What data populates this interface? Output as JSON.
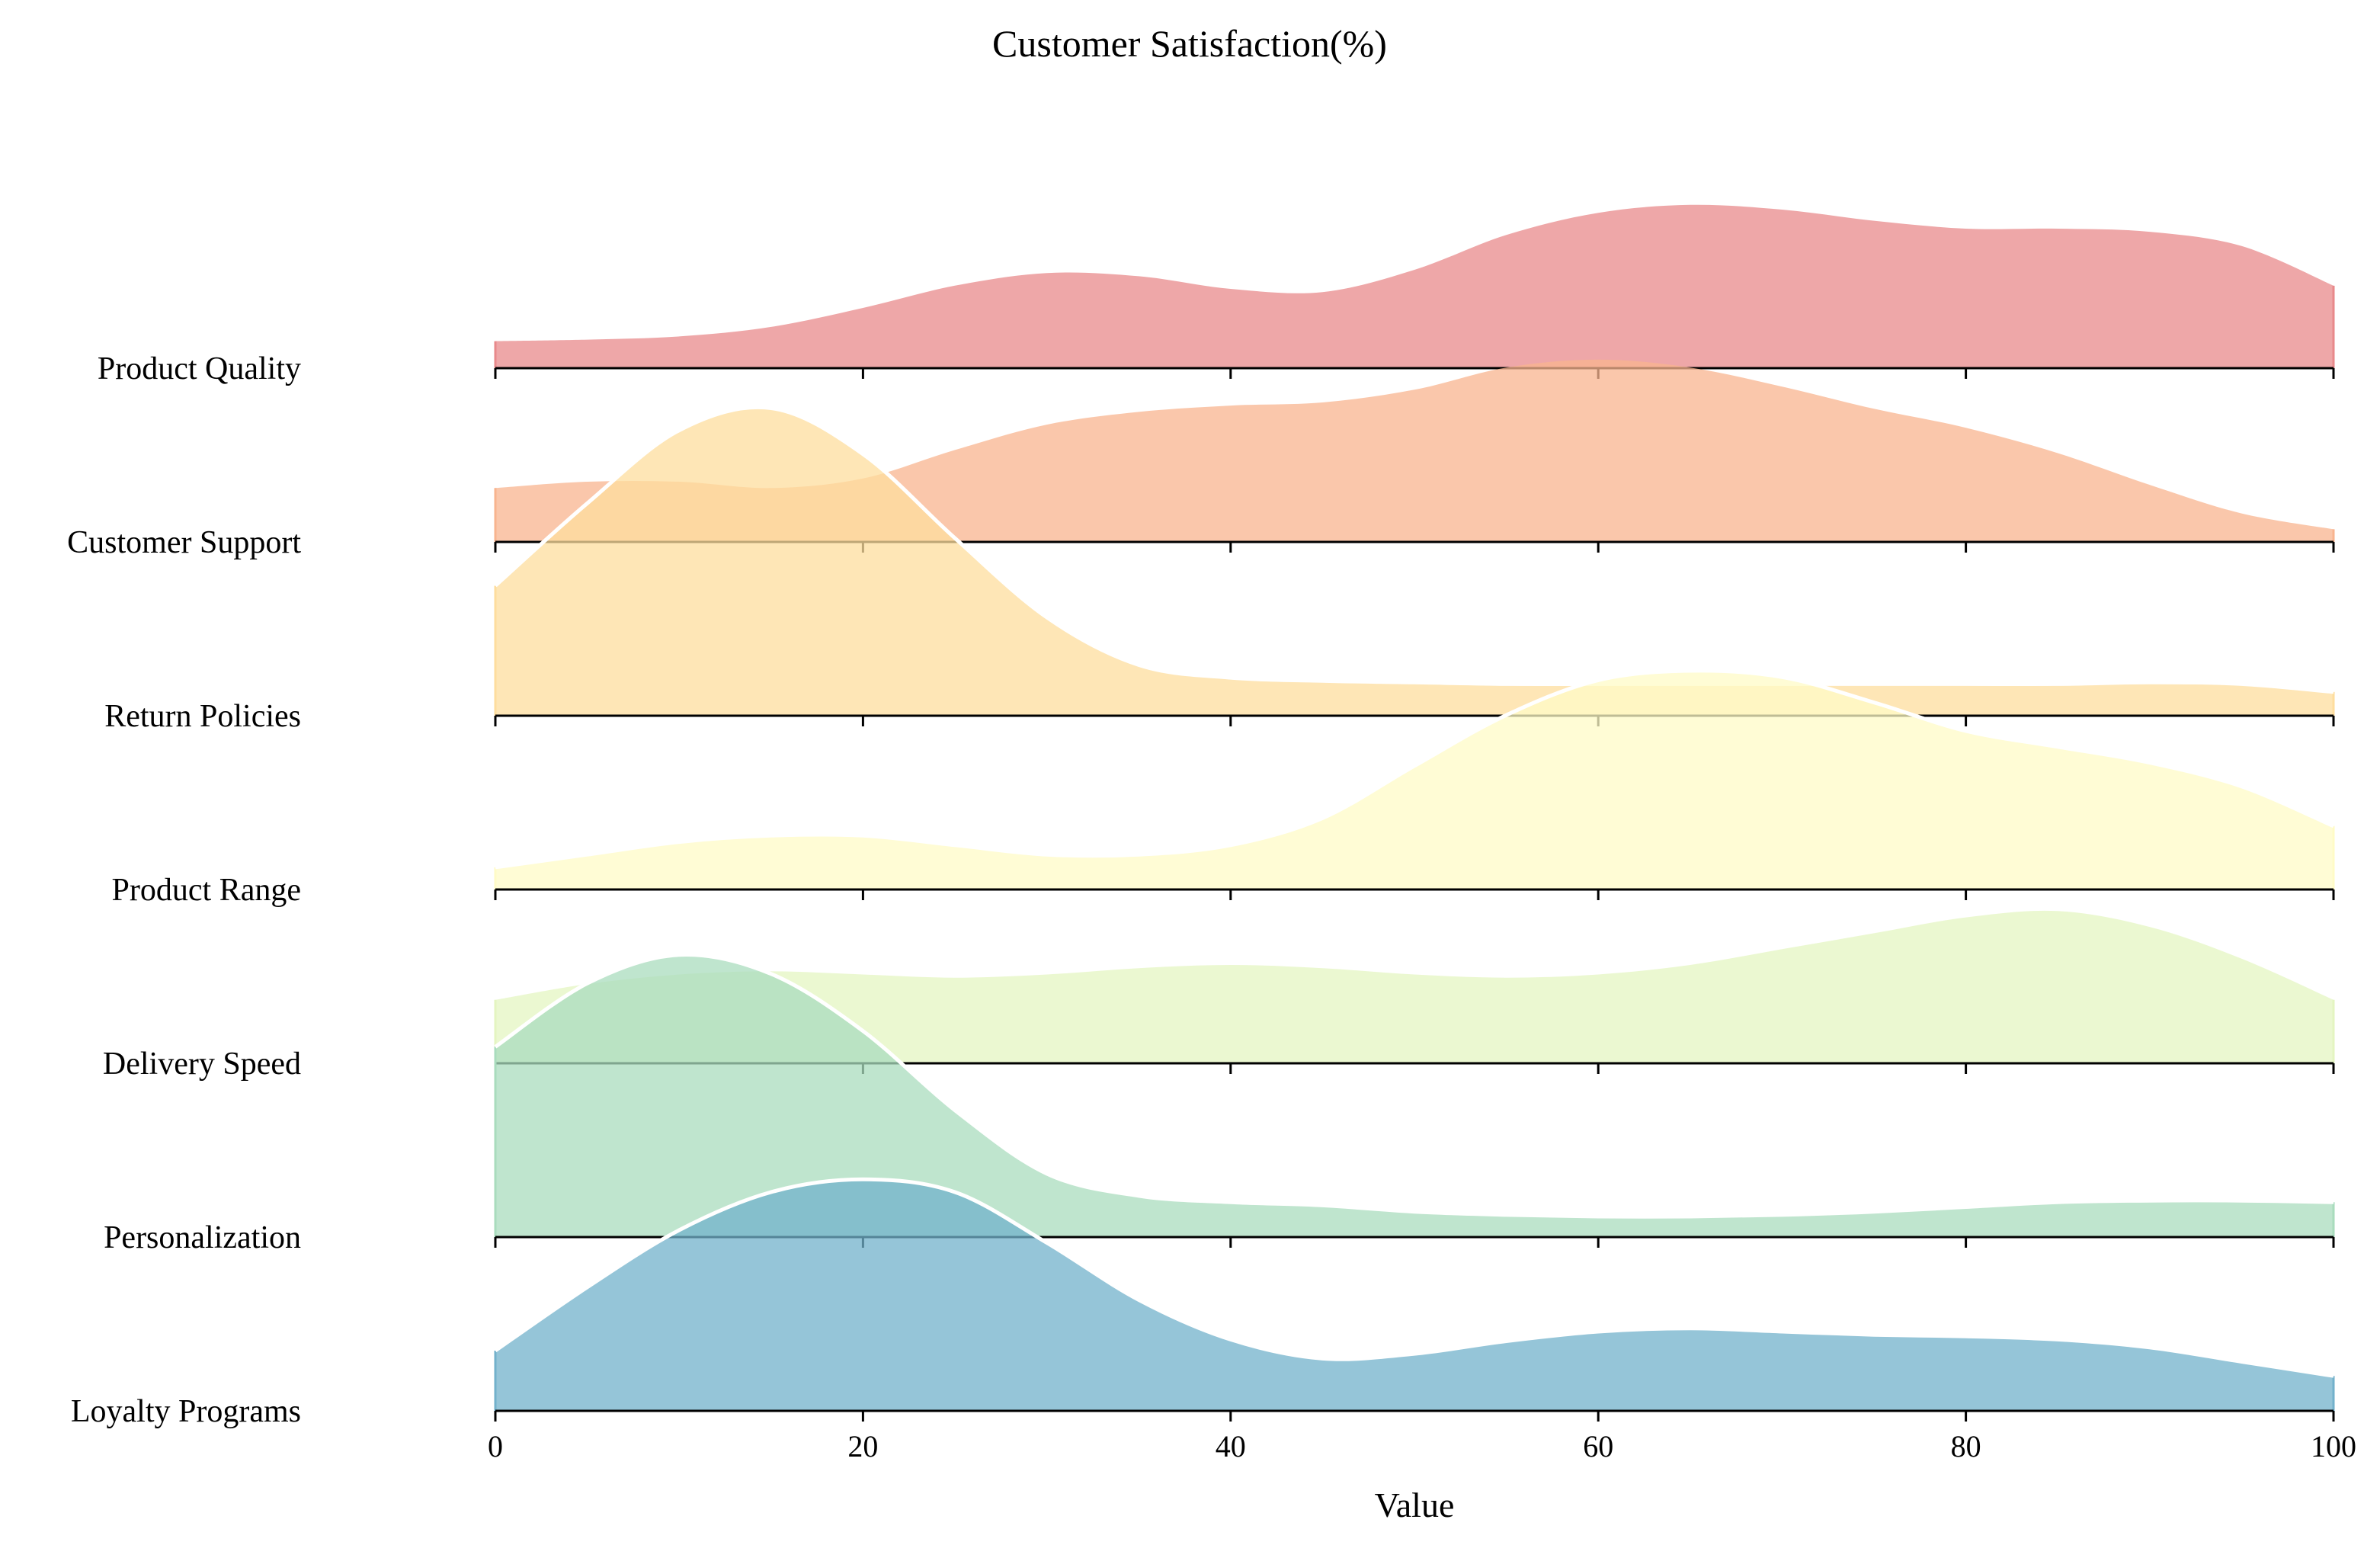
{
  "chart_data": {
    "type": "ridgeline",
    "title": "Customer Satisfaction(%)",
    "xlabel": "Value",
    "ylabel": "",
    "xlim": [
      0,
      100
    ],
    "xticks": [
      "0",
      "20",
      "40",
      "60",
      "80",
      "100"
    ],
    "grid": false,
    "legend": "none",
    "x": [
      0,
      5,
      10,
      15,
      20,
      25,
      30,
      35,
      40,
      45,
      50,
      55,
      60,
      65,
      70,
      75,
      80,
      85,
      90,
      95,
      100
    ],
    "series": [
      {
        "name": "Product Quality",
        "color": "#e8898b",
        "highlight": false,
        "values": [
          0.17,
          0.18,
          0.2,
          0.26,
          0.38,
          0.52,
          0.6,
          0.58,
          0.5,
          0.48,
          0.62,
          0.84,
          0.98,
          1.03,
          1.0,
          0.93,
          0.88,
          0.88,
          0.86,
          0.77,
          0.52
        ]
      },
      {
        "name": "Customer Support",
        "color": "#f8b48f",
        "highlight": false,
        "values": [
          0.34,
          0.38,
          0.38,
          0.34,
          0.4,
          0.58,
          0.74,
          0.82,
          0.86,
          0.88,
          0.96,
          1.1,
          1.15,
          1.1,
          0.98,
          0.84,
          0.72,
          0.56,
          0.36,
          0.18,
          0.08
        ]
      },
      {
        "name": "Return Policies",
        "color": "#fedd9e",
        "highlight": true,
        "values": [
          0.82,
          1.34,
          1.8,
          1.94,
          1.65,
          1.12,
          0.62,
          0.32,
          0.24,
          0.22,
          0.21,
          0.2,
          0.2,
          0.2,
          0.2,
          0.2,
          0.2,
          0.2,
          0.21,
          0.2,
          0.15
        ]
      },
      {
        "name": "Product Range",
        "color": "#fffbc7",
        "highlight": true,
        "values": [
          0.14,
          0.22,
          0.3,
          0.34,
          0.34,
          0.28,
          0.22,
          0.22,
          0.28,
          0.45,
          0.78,
          1.1,
          1.32,
          1.38,
          1.34,
          1.18,
          1.0,
          0.9,
          0.8,
          0.65,
          0.4
        ]
      },
      {
        "name": "Delivery Speed",
        "color": "#e4f5c1",
        "highlight": false,
        "values": [
          0.4,
          0.5,
          0.56,
          0.58,
          0.56,
          0.54,
          0.56,
          0.6,
          0.62,
          0.6,
          0.56,
          0.54,
          0.56,
          0.62,
          0.72,
          0.82,
          0.92,
          0.96,
          0.86,
          0.66,
          0.4
        ]
      },
      {
        "name": "Personalization",
        "color": "#a9dcbd",
        "highlight": true,
        "values": [
          1.2,
          1.6,
          1.78,
          1.66,
          1.3,
          0.8,
          0.4,
          0.26,
          0.22,
          0.2,
          0.16,
          0.14,
          0.13,
          0.13,
          0.14,
          0.16,
          0.19,
          0.22,
          0.23,
          0.23,
          0.22
        ]
      },
      {
        "name": "Loyalty Programs",
        "color": "#72b1cb",
        "highlight": true,
        "values": [
          0.38,
          0.78,
          1.14,
          1.38,
          1.46,
          1.38,
          1.06,
          0.7,
          0.45,
          0.33,
          0.36,
          0.44,
          0.5,
          0.52,
          0.5,
          0.48,
          0.47,
          0.45,
          0.4,
          0.31,
          0.22
        ]
      }
    ]
  }
}
